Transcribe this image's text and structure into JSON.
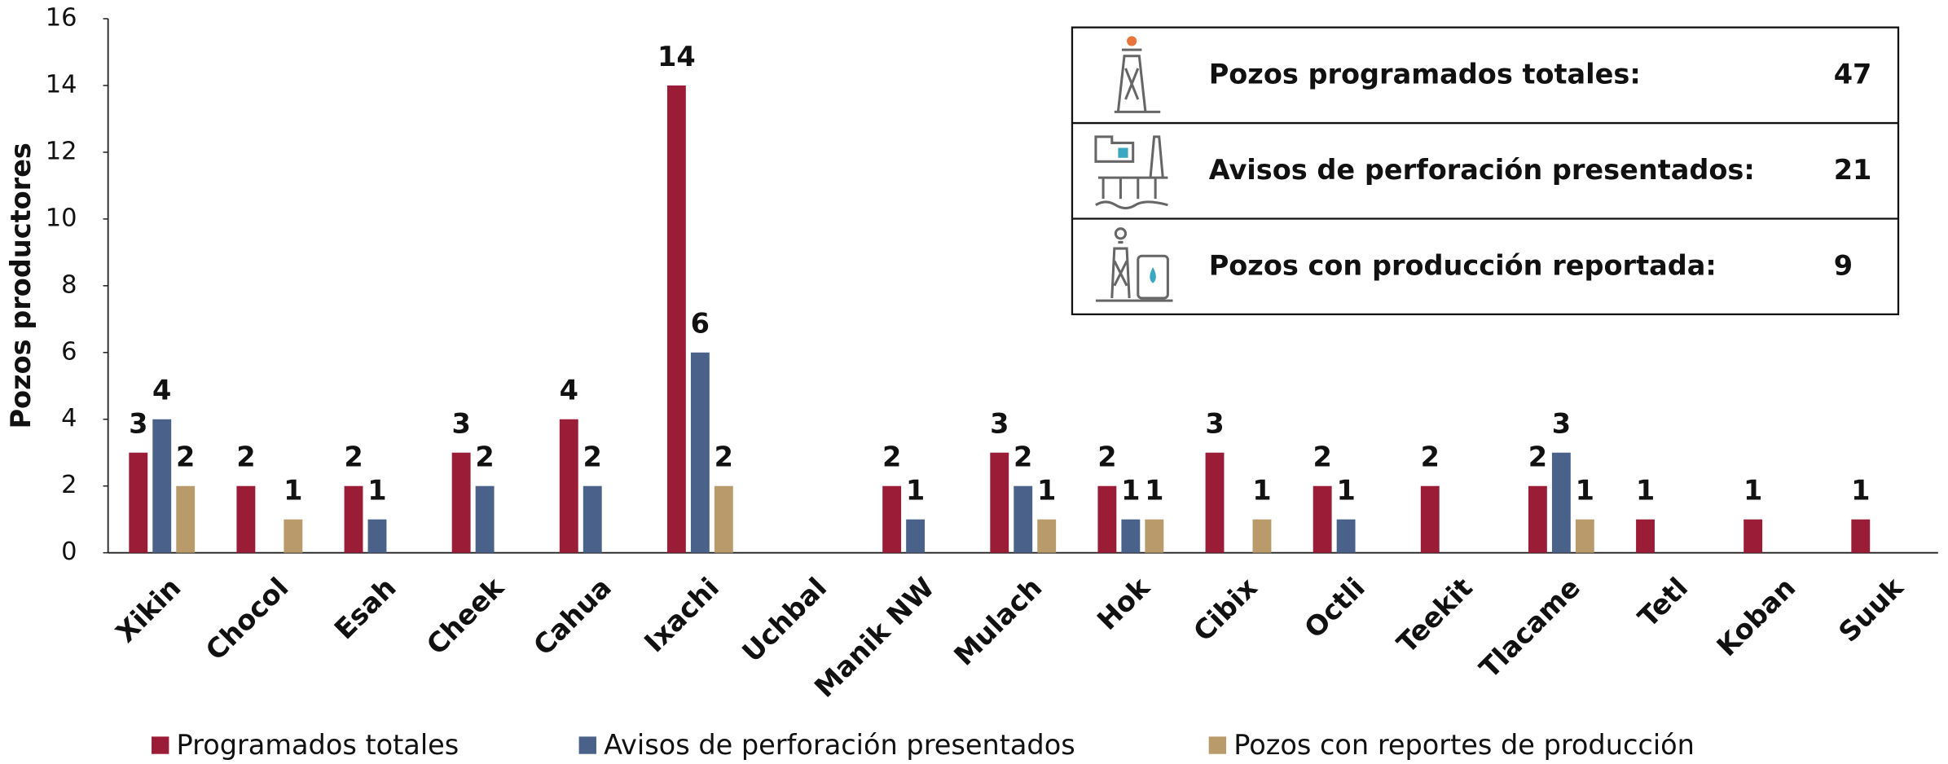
{
  "chart_data": {
    "type": "bar",
    "y_label": "Pozos productores",
    "categories": [
      "Xikin",
      "Chocol",
      "Esah",
      "Cheek",
      "Cahua",
      "Ixachi",
      "Uchbal",
      "Manik NW",
      "Mulach",
      "Hok",
      "Cibix",
      "Octli",
      "Teekit",
      "Tlacame",
      "Tetl",
      "Koban",
      "Suuk"
    ],
    "series": [
      {
        "name": "Programados totales",
        "color": "#9b1c36",
        "values": [
          3,
          2,
          2,
          3,
          4,
          14,
          null,
          2,
          3,
          2,
          3,
          2,
          2,
          2,
          1,
          1,
          1
        ]
      },
      {
        "name": "Avisos de perforación presentados",
        "color": "#4a6289",
        "values": [
          4,
          null,
          1,
          2,
          2,
          6,
          null,
          1,
          2,
          1,
          null,
          1,
          null,
          3,
          null,
          null,
          null
        ]
      },
      {
        "name": "Pozos con reportes de producción",
        "color": "#b99b6b",
        "values": [
          2,
          1,
          null,
          null,
          null,
          2,
          null,
          null,
          1,
          1,
          1,
          null,
          null,
          1,
          null,
          null,
          null
        ]
      }
    ],
    "ylim": [
      0,
      16
    ],
    "yticks": [
      0,
      2,
      4,
      6,
      8,
      10,
      12,
      14,
      16
    ],
    "grid": false,
    "legend": "bottom",
    "summary": [
      {
        "label": "Pozos programados totales:",
        "value": "47"
      },
      {
        "label": "Avisos de perforación presentados:",
        "value": "21"
      },
      {
        "label": "Pozos con producción reportada:",
        "value": "9"
      }
    ]
  }
}
